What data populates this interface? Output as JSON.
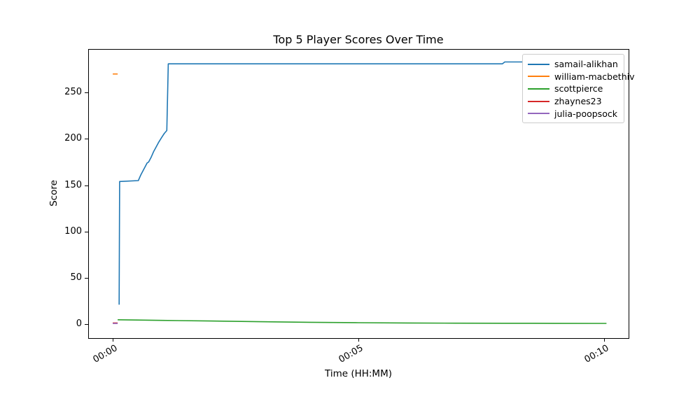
{
  "chart_data": {
    "type": "line",
    "title": "Top 5 Player Scores Over Time",
    "xlabel": "Time (HH:MM)",
    "ylabel": "Score",
    "xlim_minutes": [
      -0.5,
      10.5
    ],
    "ylim": [
      -15,
      297
    ],
    "grid": false,
    "legend_position": "upper right",
    "x_ticks": [
      {
        "value": 0,
        "label": "00:00"
      },
      {
        "value": 5,
        "label": "00:05"
      },
      {
        "value": 10,
        "label": "00:10"
      }
    ],
    "y_ticks": [
      0,
      50,
      100,
      150,
      200,
      250
    ],
    "series": [
      {
        "name": "samail-alikhan",
        "color": "#1f77b4",
        "points": [
          [
            0.13,
            21
          ],
          [
            0.14,
            154
          ],
          [
            0.52,
            155
          ],
          [
            0.57,
            161
          ],
          [
            0.62,
            166
          ],
          [
            0.67,
            171
          ],
          [
            0.7,
            174
          ],
          [
            0.73,
            175
          ],
          [
            0.78,
            180
          ],
          [
            0.83,
            186
          ],
          [
            0.88,
            191
          ],
          [
            0.93,
            196
          ],
          [
            1.0,
            202
          ],
          [
            1.05,
            206
          ],
          [
            1.1,
            209
          ],
          [
            1.13,
            281
          ],
          [
            7.93,
            281
          ],
          [
            7.98,
            283
          ],
          [
            10.05,
            283
          ]
        ]
      },
      {
        "name": "william-macbethiv",
        "color": "#ff7f0e",
        "points": [
          [
            0.0,
            270
          ],
          [
            0.1,
            270
          ]
        ]
      },
      {
        "name": "scottpierce",
        "color": "#2ca02c",
        "points": [
          [
            0.1,
            4.8
          ],
          [
            0.5,
            4.5
          ],
          [
            1,
            4.1
          ],
          [
            2,
            3.4
          ],
          [
            3,
            2.7
          ],
          [
            4,
            2.1
          ],
          [
            5,
            1.6
          ],
          [
            6,
            1.3
          ],
          [
            7,
            1.1
          ],
          [
            8,
            1.0
          ],
          [
            9,
            0.95
          ],
          [
            10.05,
            0.9
          ]
        ]
      },
      {
        "name": "zhaynes23",
        "color": "#d62728",
        "points": [
          [
            0.0,
            1.3
          ],
          [
            0.1,
            1.3
          ]
        ]
      },
      {
        "name": "julia-poopsock",
        "color": "#9467bd",
        "points": [
          [
            0.0,
            0.8
          ],
          [
            0.1,
            0.8
          ]
        ]
      }
    ]
  }
}
